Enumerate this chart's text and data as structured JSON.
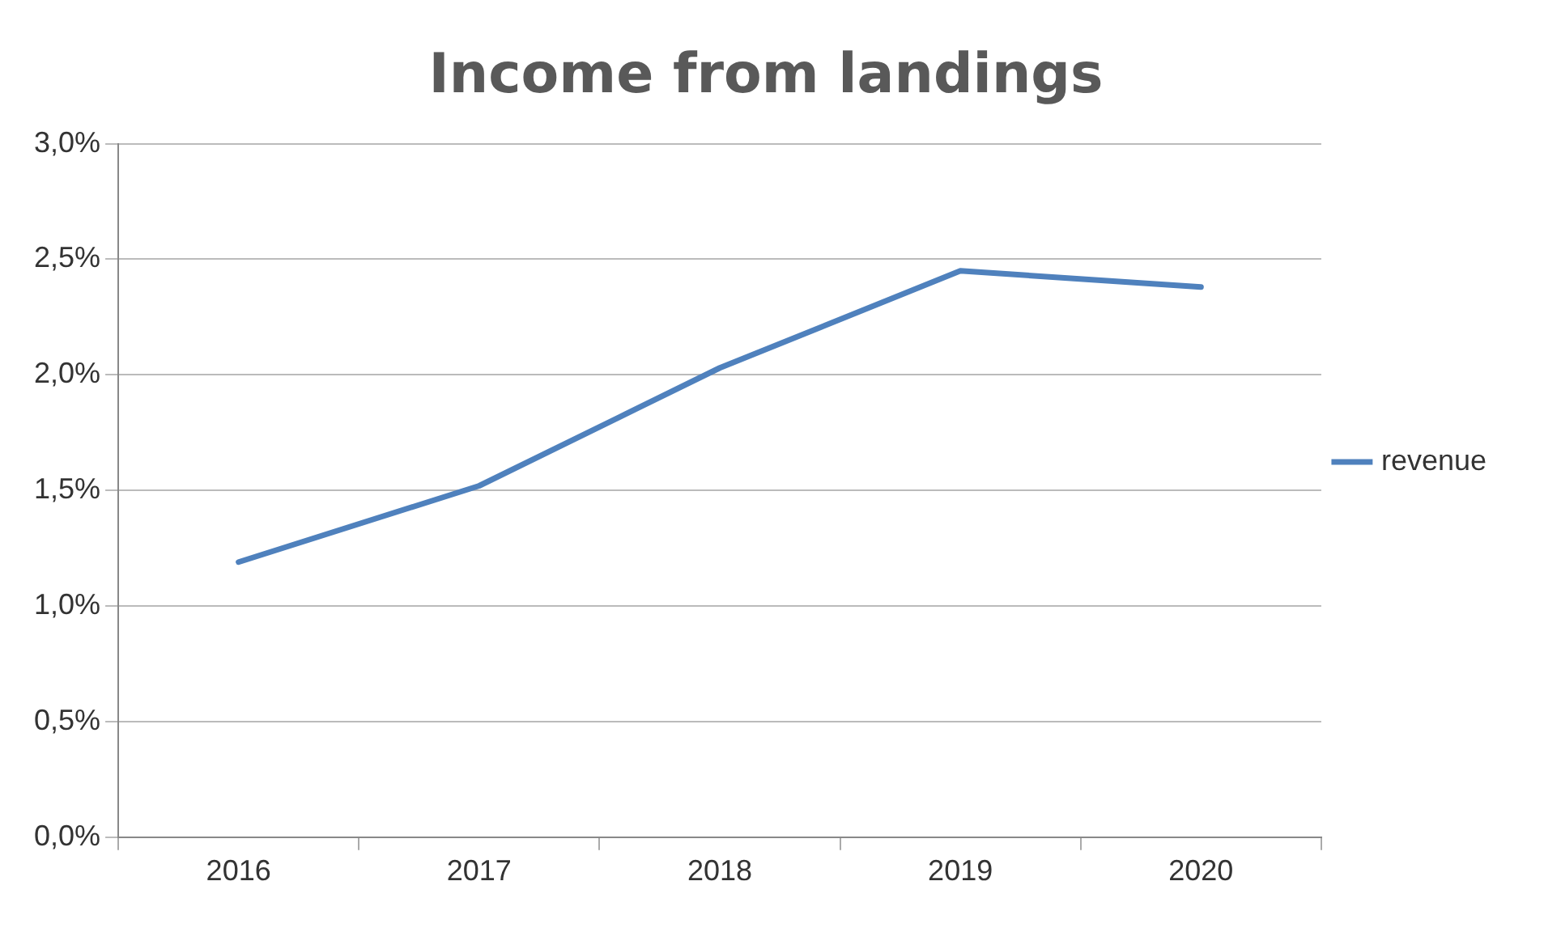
{
  "chart_data": {
    "type": "line",
    "title": "Income from landings",
    "categories": [
      "2016",
      "2017",
      "2018",
      "2019",
      "2020"
    ],
    "series": [
      {
        "name": "revenue",
        "color": "#4f81bd",
        "values": [
          1.19,
          1.52,
          2.03,
          2.45,
          2.38
        ]
      }
    ],
    "ylim": [
      0,
      3
    ],
    "yticks": [
      {
        "value": 0,
        "label": "0,0%"
      },
      {
        "value": 0.5,
        "label": "0,5%"
      },
      {
        "value": 1,
        "label": "1,0%"
      },
      {
        "value": 1.5,
        "label": "1,5%"
      },
      {
        "value": 2,
        "label": "2,0%"
      },
      {
        "value": 2.5,
        "label": "2,5%"
      },
      {
        "value": 3,
        "label": "3,0%"
      }
    ],
    "grid": "y",
    "legend": "right",
    "marker": "none",
    "line_style": "solid"
  }
}
